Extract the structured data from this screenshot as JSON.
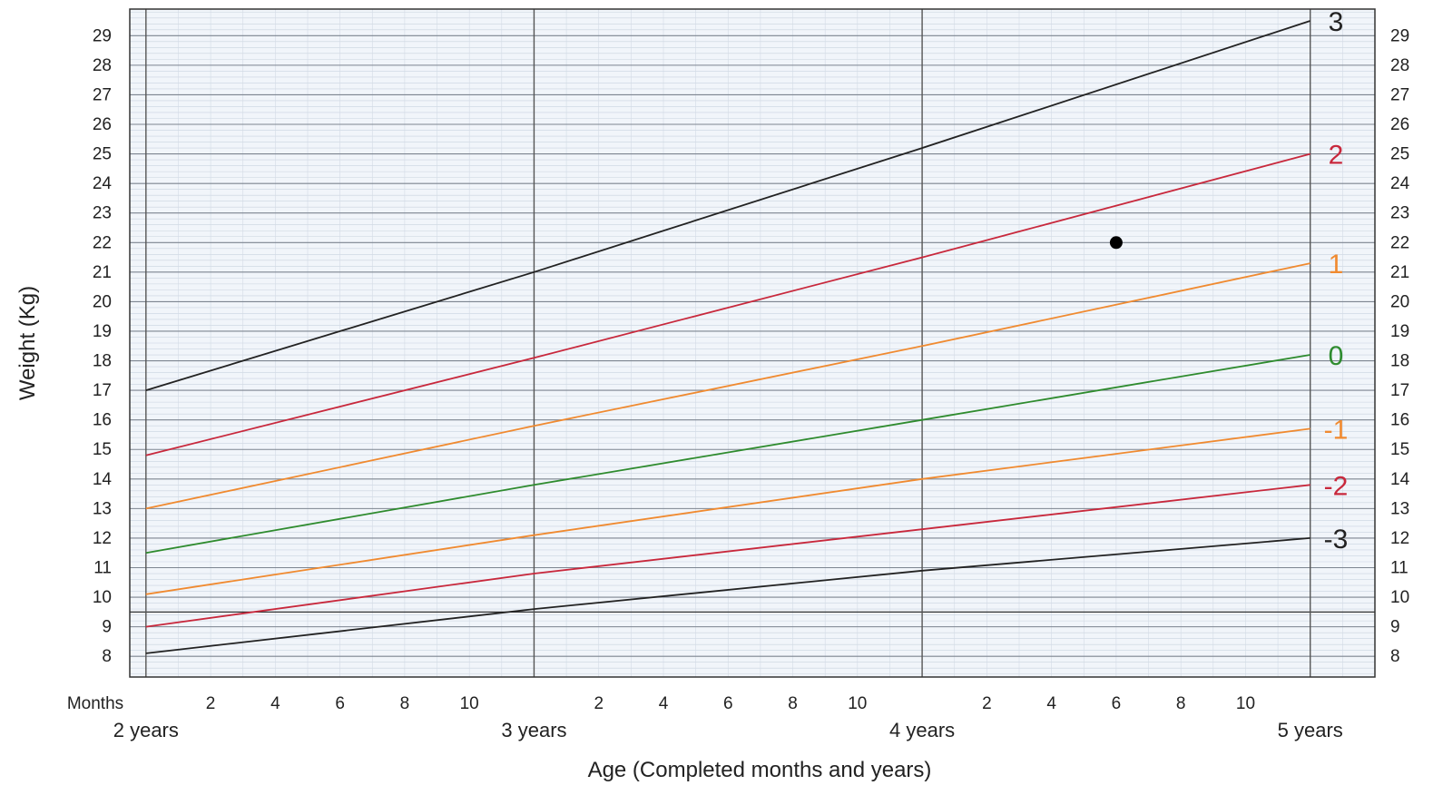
{
  "chart_data": {
    "type": "line",
    "ylabel": "Weight (Kg)",
    "xlabel": "Age (Completed months and years)",
    "months_label": "Months",
    "y_ticks": [
      8,
      9,
      10,
      11,
      12,
      13,
      14,
      15,
      16,
      17,
      18,
      19,
      20,
      21,
      22,
      23,
      24,
      25,
      26,
      27,
      28,
      29
    ],
    "ylim": [
      7.3,
      29.9
    ],
    "xlim": [
      23.5,
      62
    ],
    "x_year_ticks": [
      {
        "label": "2 years",
        "month": 24
      },
      {
        "label": "3 years",
        "month": 36
      },
      {
        "label": "4 years",
        "month": 48
      },
      {
        "label": "5 years",
        "month": 60
      }
    ],
    "x_month_ticks": [
      {
        "label": "2",
        "month": 26
      },
      {
        "label": "4",
        "month": 28
      },
      {
        "label": "6",
        "month": 30
      },
      {
        "label": "8",
        "month": 32
      },
      {
        "label": "10",
        "month": 34
      },
      {
        "label": "2",
        "month": 38
      },
      {
        "label": "4",
        "month": 40
      },
      {
        "label": "6",
        "month": 42
      },
      {
        "label": "8",
        "month": 44
      },
      {
        "label": "10",
        "month": 46
      },
      {
        "label": "2",
        "month": 50
      },
      {
        "label": "4",
        "month": 52
      },
      {
        "label": "6",
        "month": 54
      },
      {
        "label": "8",
        "month": 56
      },
      {
        "label": "10",
        "month": 58
      }
    ],
    "grid": true,
    "series": [
      {
        "name": "3",
        "color": "#222222",
        "x": [
          24,
          36,
          48,
          60
        ],
        "values": [
          17.0,
          21.0,
          25.2,
          29.5
        ]
      },
      {
        "name": "2",
        "color": "#c8283c",
        "x": [
          24,
          36,
          48,
          60
        ],
        "values": [
          14.8,
          18.1,
          21.5,
          25.0
        ]
      },
      {
        "name": "1",
        "color": "#f08a30",
        "x": [
          24,
          36,
          48,
          60
        ],
        "values": [
          13.0,
          15.8,
          18.5,
          21.3
        ]
      },
      {
        "name": "0",
        "color": "#2e8b2e",
        "x": [
          24,
          36,
          48,
          60
        ],
        "values": [
          11.5,
          13.8,
          16.0,
          18.2
        ]
      },
      {
        "name": "-1",
        "color": "#f08a30",
        "x": [
          24,
          36,
          48,
          60
        ],
        "values": [
          10.1,
          12.1,
          14.0,
          15.7
        ]
      },
      {
        "name": "-2",
        "color": "#c8283c",
        "x": [
          24,
          36,
          48,
          60
        ],
        "values": [
          9.0,
          10.8,
          12.3,
          13.8
        ]
      },
      {
        "name": "-3",
        "color": "#222222",
        "x": [
          24,
          36,
          48,
          60
        ],
        "values": [
          8.1,
          9.6,
          10.9,
          12.0
        ]
      }
    ],
    "points": [
      {
        "x": 54,
        "y": 22,
        "color": "#000000"
      }
    ]
  }
}
